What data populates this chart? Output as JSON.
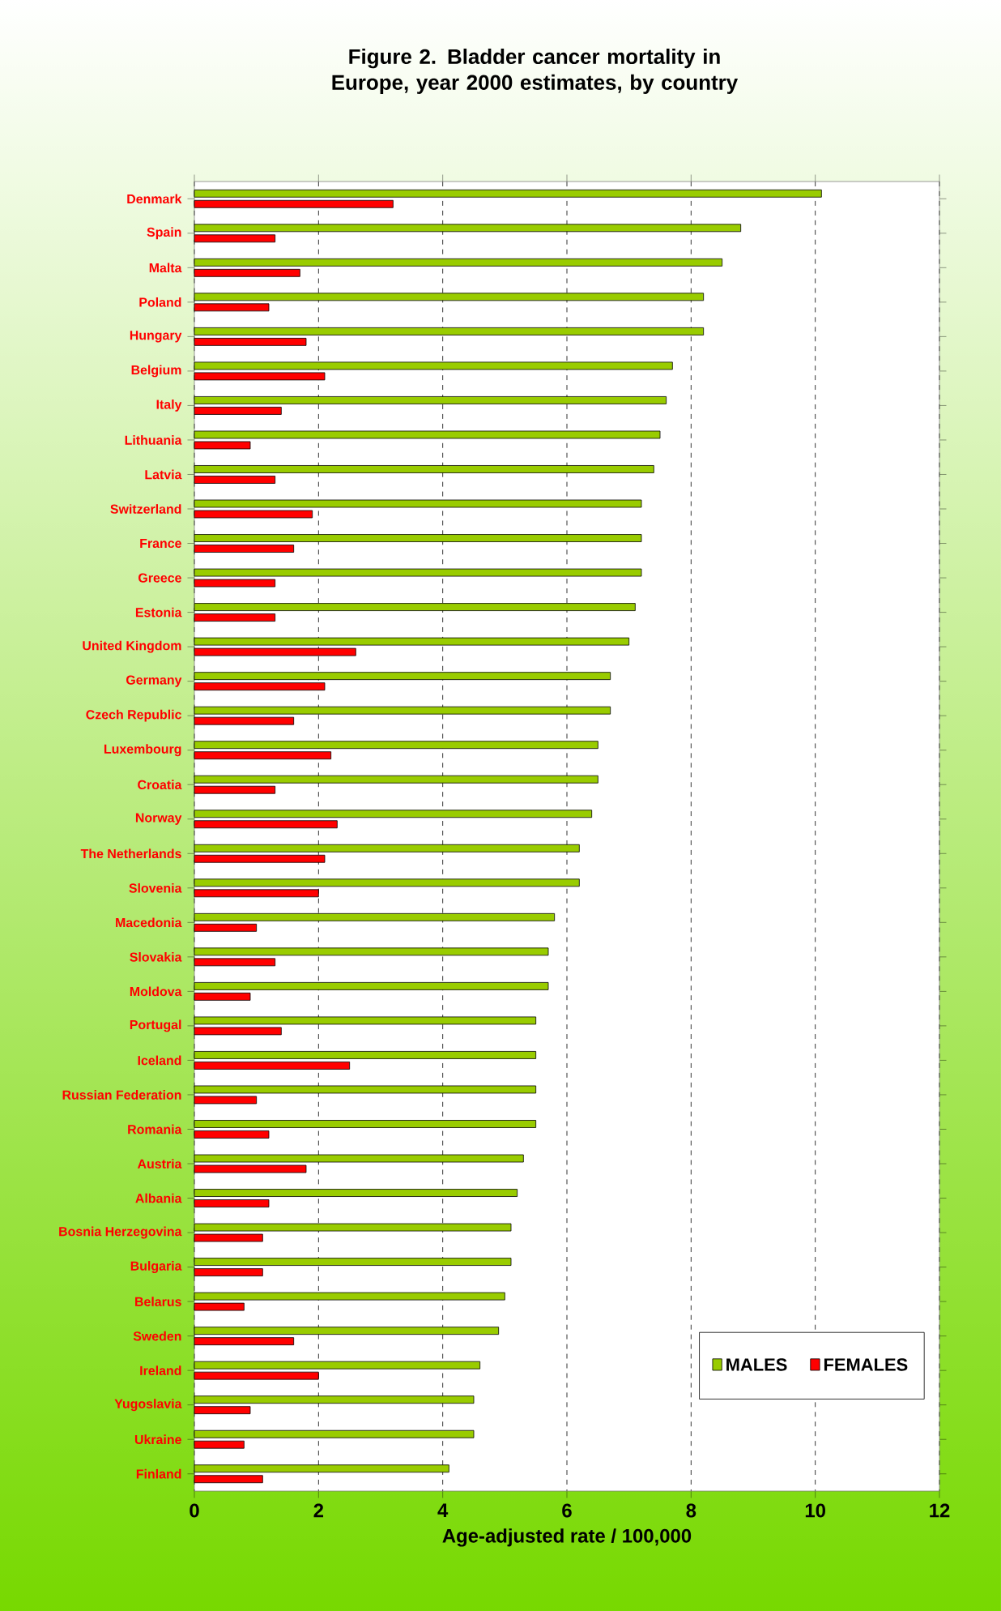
{
  "chart_data": {
    "type": "bar",
    "orientation": "horizontal",
    "title": "Figure 2. Bladder cancer mortality in Europe, year 2000 estimates, by country",
    "xlabel": "Age-adjusted rate / 100,000",
    "categories": [
      "Denmark",
      "Spain",
      "Malta",
      "Poland",
      "Hungary",
      "Belgium",
      "Italy",
      "Lithuania",
      "Latvia",
      "Switzerland",
      "France",
      "Greece",
      "Estonia",
      "United Kingdom",
      "Germany",
      "Czech Republic",
      "Luxembourg",
      "Croatia",
      "Norway",
      "The Netherlands",
      "Slovenia",
      "Macedonia",
      "Slovakia",
      "Moldova",
      "Portugal",
      "Iceland",
      "Russian Federation",
      "Romania",
      "Austria",
      "Albania",
      "Bosnia Herzegovina",
      "Bulgaria",
      "Belarus",
      "Sweden",
      "Ireland",
      "Yugoslavia",
      "Ukraine",
      "Finland"
    ],
    "series": [
      {
        "name": "MALES",
        "color": "#99cc00",
        "values": [
          10.1,
          8.8,
          8.5,
          8.2,
          8.2,
          7.7,
          7.6,
          7.5,
          7.4,
          7.2,
          7.2,
          7.2,
          7.1,
          7.0,
          6.7,
          6.7,
          6.5,
          6.5,
          6.4,
          6.2,
          6.2,
          5.8,
          5.7,
          5.7,
          5.5,
          5.5,
          5.5,
          5.5,
          5.3,
          5.2,
          5.1,
          5.1,
          5.0,
          4.9,
          4.6,
          4.5,
          4.5,
          4.1
        ]
      },
      {
        "name": "FEMALES",
        "color": "#ff0000",
        "values": [
          3.2,
          1.3,
          1.7,
          1.2,
          1.8,
          2.1,
          1.4,
          0.9,
          1.3,
          1.9,
          1.6,
          1.3,
          1.3,
          2.6,
          2.1,
          1.6,
          2.2,
          1.3,
          2.3,
          2.1,
          2.0,
          1.0,
          1.3,
          0.9,
          1.4,
          2.5,
          1.0,
          1.2,
          1.8,
          1.2,
          1.1,
          1.1,
          0.8,
          1.6,
          2.0,
          0.9,
          0.8,
          1.1
        ]
      }
    ],
    "xlim": [
      0,
      12
    ],
    "xticks": [
      0,
      2,
      4,
      6,
      8,
      10,
      12
    ],
    "grid": "x",
    "legend": "bottom right"
  }
}
